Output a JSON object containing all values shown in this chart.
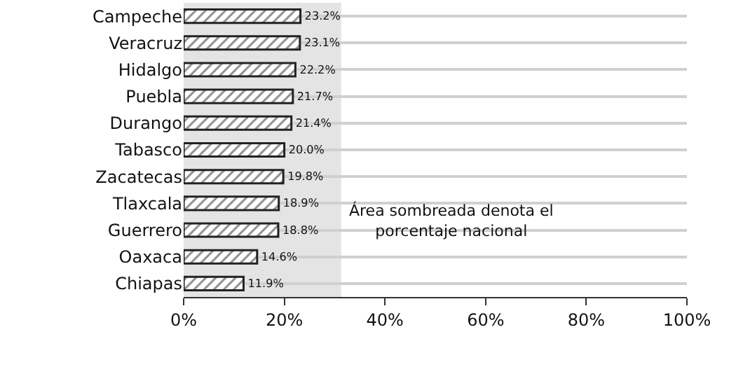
{
  "chart_data": {
    "type": "bar",
    "orientation": "horizontal",
    "categories": [
      "Campeche",
      "Veracruz",
      "Hidalgo",
      "Puebla",
      "Durango",
      "Tabasco",
      "Zacatecas",
      "Tlaxcala",
      "Guerrero",
      "Oaxaca",
      "Chiapas"
    ],
    "values": [
      23.2,
      23.1,
      22.2,
      21.7,
      21.4,
      20.0,
      19.8,
      18.9,
      18.8,
      14.6,
      11.9
    ],
    "value_labels": [
      "23.2%",
      "23.1%",
      "22.2%",
      "21.7%",
      "21.4%",
      "20.0%",
      "19.8%",
      "18.9%",
      "18.8%",
      "14.6%",
      "11.9%"
    ],
    "color": "#222222",
    "xlim": [
      0,
      100
    ],
    "xticks": [
      {
        "value": 0,
        "label": "0%"
      },
      {
        "value": 20,
        "label": "20%"
      },
      {
        "value": 40,
        "label": "40%"
      },
      {
        "value": 60,
        "label": "60%"
      },
      {
        "value": 80,
        "label": "80%"
      },
      {
        "value": 100,
        "label": "100%"
      }
    ],
    "bands": [
      {
        "axis": "x",
        "from": 0,
        "to": 31.3,
        "label": "Área sombreada denota el porcentaje nacional",
        "color": "#e4e4e4"
      }
    ],
    "grid": "y"
  }
}
